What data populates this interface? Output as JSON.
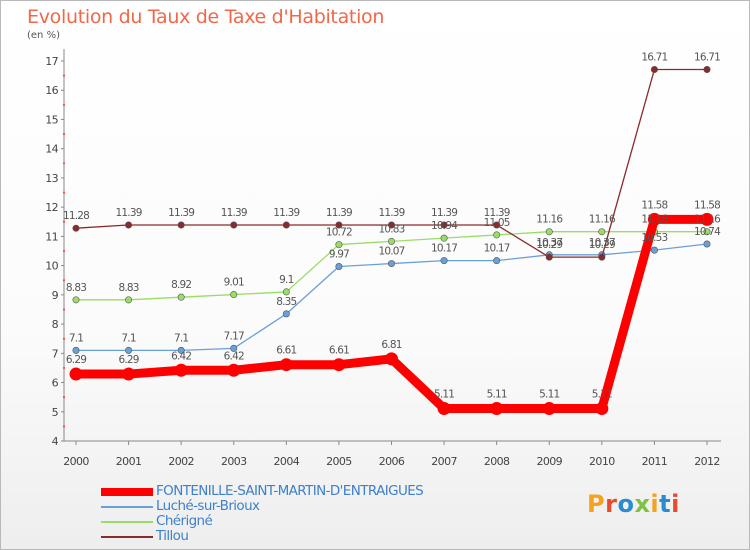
{
  "title": "Evolution du Taux de Taxe d'Habitation",
  "unit_label": "(en %)",
  "chart_data": {
    "type": "line",
    "title": "Evolution du Taux de Taxe d'Habitation",
    "ylabel": "(en %)",
    "xlabel": "",
    "x": [
      "2000",
      "2001",
      "2002",
      "2003",
      "2004",
      "2005",
      "2006",
      "2007",
      "2008",
      "2009",
      "2010",
      "2011",
      "2012"
    ],
    "ylim": [
      4,
      17
    ],
    "yticks": [
      "4",
      "5",
      "6",
      "7",
      "8",
      "9",
      "10",
      "11",
      "12",
      "13",
      "14",
      "15",
      "16",
      "17"
    ],
    "grid": false,
    "legend_position": "bottom-left",
    "series": [
      {
        "name": "FONTENILLE-SAINT-MARTIN-D'ENTRAIGUES",
        "color": "#ff0000",
        "values": [
          6.29,
          6.29,
          6.42,
          6.42,
          6.61,
          6.61,
          6.81,
          5.11,
          5.11,
          5.11,
          5.11,
          11.58,
          11.58
        ],
        "labels": [
          "6.29",
          "6.29",
          "6.42",
          "6.42",
          "6.61",
          "6.61",
          "6.81",
          "5.11",
          "5.11",
          "5.11",
          "5.11",
          "11.58",
          "11.58"
        ]
      },
      {
        "name": "Luché-sur-Brioux",
        "color": "#6aa0d8",
        "values": [
          7.1,
          7.1,
          7.1,
          7.17,
          8.35,
          9.97,
          10.07,
          10.17,
          10.17,
          10.37,
          10.37,
          10.53,
          10.74
        ],
        "labels": [
          "7.1",
          "7.1",
          "7.1",
          "7.17",
          "8.35",
          "9.97",
          "10.07",
          "10.17",
          "10.17",
          "10.37",
          "10.37",
          "10.53",
          "10.74"
        ]
      },
      {
        "name": "Chérigné",
        "color": "#99dd66",
        "values": [
          8.83,
          8.83,
          8.92,
          9.01,
          9.1,
          10.72,
          10.83,
          10.94,
          11.05,
          11.16,
          11.16,
          11.16,
          11.16
        ],
        "labels": [
          "8.83",
          "8.83",
          "8.92",
          "9.01",
          "9.1",
          "10.72",
          "10.83",
          "10.94",
          "11.05",
          "11.16",
          "11.16",
          "11.16",
          "11.16"
        ]
      },
      {
        "name": "Tillou",
        "color": "#8b2a2a",
        "values": [
          11.28,
          11.39,
          11.39,
          11.39,
          11.39,
          11.39,
          11.39,
          11.39,
          11.39,
          10.29,
          10.29,
          16.71,
          16.71
        ],
        "labels": [
          "11.28",
          "11.39",
          "11.39",
          "11.39",
          "11.39",
          "11.39",
          "11.39",
          "11.39",
          "11.39",
          "10.29",
          "10.29",
          "16.71",
          "16.71"
        ]
      }
    ]
  },
  "logo": {
    "text": "Proxiti",
    "colors": [
      "#f5a21c",
      "#e9492d",
      "#2a8bd1",
      "#7ec242",
      "#f5a21c",
      "#2a8bd1",
      "#e9492d"
    ]
  }
}
